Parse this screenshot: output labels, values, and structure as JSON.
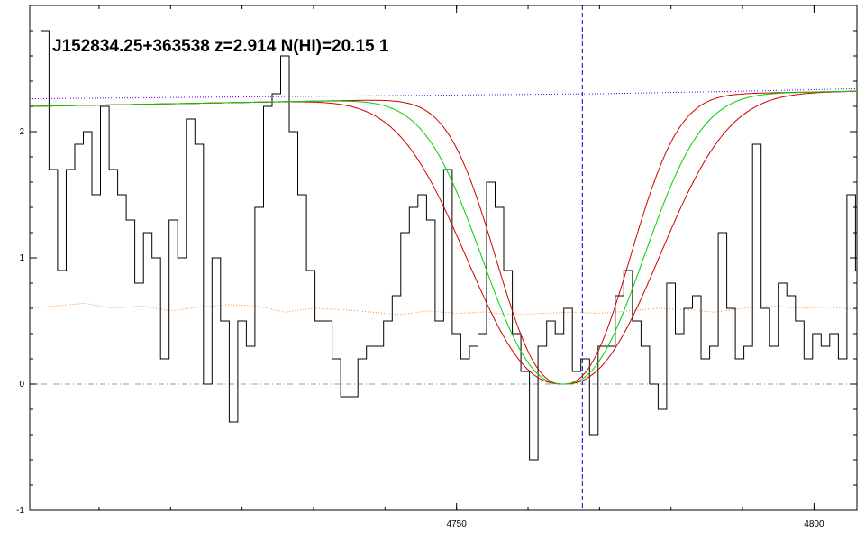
{
  "chart_data": {
    "type": "line",
    "title": "J152834.25+363538 z=2.914 N(HI)=20.15 1",
    "xlabel": "",
    "ylabel": "",
    "xlim": [
      4690.3,
      4806.0
    ],
    "ylim": [
      -1.0,
      3.0
    ],
    "x_ticks": [
      4750,
      4800
    ],
    "y_ticks": [
      -1,
      0,
      1,
      2
    ],
    "grid": false,
    "legend": "none",
    "center_line_x": 4767.6,
    "zero_level": 0,
    "colors": {
      "flux": "#000000",
      "model": "#00d000",
      "model_bounds": "#d00000",
      "continuum": "#5a00ff",
      "error": "#ff8a2a",
      "center_line": "#0000cc",
      "zero_line": "#999999"
    },
    "series": [
      {
        "kind": "flux-histogram",
        "x_start": 4691.8,
        "bin_width": 1.2,
        "values": [
          2.8,
          1.7,
          0.9,
          1.7,
          1.9,
          2.0,
          1.5,
          2.2,
          1.7,
          1.5,
          1.3,
          0.8,
          1.2,
          1.0,
          0.2,
          1.3,
          1.0,
          2.1,
          1.9,
          0.0,
          1.0,
          0.5,
          -0.3,
          0.5,
          0.3,
          1.4,
          2.2,
          2.3,
          2.6,
          2.0,
          1.5,
          0.9,
          0.5,
          0.5,
          0.2,
          -0.1,
          -0.1,
          0.2,
          0.3,
          0.3,
          0.5,
          0.7,
          1.2,
          1.4,
          1.5,
          1.3,
          0.5,
          1.7,
          0.4,
          0.2,
          0.3,
          0.4,
          1.6,
          1.4,
          0.9,
          0.4,
          0.1,
          -0.6,
          0.3,
          0.5,
          0.4,
          0.6,
          0.1,
          0.2,
          -0.4,
          0.3,
          0.3,
          0.7,
          0.9,
          0.5,
          0.3,
          0.0,
          -0.2,
          0.8,
          0.4,
          0.6,
          0.7,
          0.2,
          0.3,
          1.2,
          0.6,
          0.2,
          0.3,
          1.9,
          0.6,
          0.3,
          0.8,
          0.7,
          0.5,
          0.2,
          0.4,
          0.3,
          0.4,
          0.2,
          1.5,
          0.9,
          2.1,
          0.5,
          0.9,
          0.6,
          0.3,
          0.7,
          1.8,
          2.2,
          1.6,
          1.7,
          2.3,
          1.4,
          0.5,
          1.3,
          0.8,
          0.8,
          0.3,
          1.2,
          1.3,
          1.0,
          1.3,
          0.2,
          0.1,
          0.0,
          1.7,
          0.6,
          1.3,
          1.5,
          1.6,
          0.5,
          0.4,
          1.9,
          1.1,
          1.0,
          0.4,
          1.2,
          1.1,
          0.8,
          -0.1,
          1.3,
          0.6,
          0.9,
          2.2,
          2.0,
          1.8,
          0.9,
          1.2,
          1.3,
          1.4,
          1.1,
          0.9,
          1.3,
          0.8,
          0.6,
          1.5,
          1.6,
          0.8,
          0.2
        ]
      },
      {
        "kind": "continuum",
        "x": [
          4690.3,
          4710,
          4730,
          4750,
          4770,
          4790,
          4806.0
        ],
        "values": [
          2.26,
          2.27,
          2.28,
          2.29,
          2.3,
          2.32,
          2.34
        ]
      },
      {
        "kind": "error",
        "x": [
          4690.3,
          4694,
          4698,
          4702,
          4706,
          4710,
          4714,
          4718,
          4722,
          4726,
          4730,
          4734,
          4738,
          4742,
          4746,
          4750,
          4754,
          4758,
          4762,
          4766,
          4770,
          4774,
          4778,
          4782,
          4786,
          4790,
          4794,
          4798,
          4802,
          4806.0
        ],
        "values": [
          0.6,
          0.62,
          0.64,
          0.6,
          0.62,
          0.58,
          0.61,
          0.63,
          0.62,
          0.57,
          0.6,
          0.59,
          0.57,
          0.55,
          0.58,
          0.56,
          0.57,
          0.55,
          0.56,
          0.57,
          0.56,
          0.58,
          0.6,
          0.59,
          0.57,
          0.6,
          0.62,
          0.6,
          0.61,
          0.59
        ]
      }
    ],
    "model": {
      "center_x": 4764.9,
      "continuum_start": 2.2,
      "continuum_end": 2.32,
      "width_mid": 14.2,
      "width_low": 11.8,
      "width_high": 16.9
    }
  }
}
